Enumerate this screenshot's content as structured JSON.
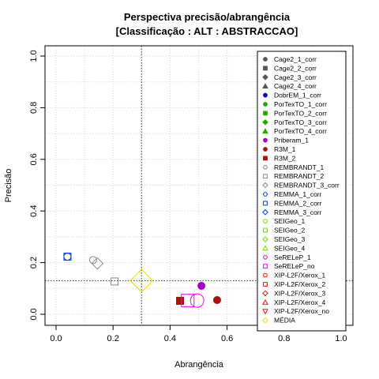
{
  "chart_data": {
    "type": "scatter",
    "title": "Perspectiva precisão/abrangência",
    "subtitle": "[Classificação : ALT : ABSTRACCAO]",
    "xlabel": "Abrangência",
    "ylabel": "Precisão",
    "xlim": [
      0,
      1
    ],
    "ylim": [
      0,
      1
    ],
    "xticks": [
      "0.0",
      "0.2",
      "0.4",
      "0.6",
      "0.8",
      "1.0"
    ],
    "yticks": [
      "0.0",
      "0.2",
      "0.4",
      "0.6",
      "0.8",
      "1.0"
    ],
    "grid": true,
    "legend_position": "right",
    "reference_lines": {
      "x": 0.3,
      "y": 0.13
    },
    "series": [
      {
        "name": "Cage2_1_corr",
        "shape": "circle",
        "filled": true,
        "color": "#555555"
      },
      {
        "name": "Cage2_2_corr",
        "shape": "square",
        "filled": true,
        "color": "#555555"
      },
      {
        "name": "Cage2_3_corr",
        "shape": "diamond",
        "filled": true,
        "color": "#555555"
      },
      {
        "name": "Cage2_4_corr",
        "shape": "triangle",
        "filled": true,
        "color": "#555555"
      },
      {
        "name": "DobrEM_1_corr",
        "shape": "circle",
        "filled": true,
        "color": "#0000cc"
      },
      {
        "name": "PorTexTO_1_corr",
        "shape": "circle",
        "filled": true,
        "color": "#22aa00"
      },
      {
        "name": "PorTexTO_2_corr",
        "shape": "square",
        "filled": true,
        "color": "#22aa00"
      },
      {
        "name": "PorTexTO_3_corr",
        "shape": "diamond",
        "filled": true,
        "color": "#22aa00"
      },
      {
        "name": "PorTexTO_4_corr",
        "shape": "triangle",
        "filled": true,
        "color": "#22aa00"
      },
      {
        "name": "Priberam_1",
        "shape": "circle",
        "filled": true,
        "color": "#aa00cc",
        "points": [
          {
            "x": 0.51,
            "y": 0.11,
            "size": 4.5
          }
        ]
      },
      {
        "name": "R3M_1",
        "shape": "circle",
        "filled": true,
        "color": "#aa1111",
        "points": [
          {
            "x": 0.565,
            "y": 0.055,
            "size": 4.5
          }
        ]
      },
      {
        "name": "R3M_2",
        "shape": "square",
        "filled": true,
        "color": "#aa1111",
        "points": [
          {
            "x": 0.435,
            "y": 0.052,
            "size": 4.5
          }
        ]
      },
      {
        "name": "REMBRANDT_1",
        "shape": "circle",
        "filled": false,
        "color": "#888888",
        "points": [
          {
            "x": 0.13,
            "y": 0.21,
            "size": 4.5
          }
        ]
      },
      {
        "name": "REMBRANDT_2",
        "shape": "square",
        "filled": false,
        "color": "#888888",
        "points": [
          {
            "x": 0.205,
            "y": 0.127,
            "size": 4.5
          }
        ]
      },
      {
        "name": "REMBRANDT_3_corr",
        "shape": "diamond",
        "filled": false,
        "color": "#888888",
        "points": [
          {
            "x": 0.145,
            "y": 0.197,
            "size": 5.5
          }
        ]
      },
      {
        "name": "REMMA_1_corr",
        "shape": "circle",
        "filled": false,
        "color": "#0033ee",
        "points": [
          {
            "x": 0.04,
            "y": 0.223,
            "size": 4.5
          }
        ]
      },
      {
        "name": "REMMA_2_corr",
        "shape": "square",
        "filled": false,
        "color": "#0033ee",
        "points": [
          {
            "x": 0.04,
            "y": 0.223,
            "size": 4.5
          }
        ]
      },
      {
        "name": "REMMA_3_corr",
        "shape": "diamond",
        "filled": false,
        "color": "#0033ee"
      },
      {
        "name": "SEIGeo_1",
        "shape": "circle",
        "filled": false,
        "color": "#77dd00"
      },
      {
        "name": "SEIGeo_2",
        "shape": "square",
        "filled": false,
        "color": "#77dd00"
      },
      {
        "name": "SEIGeo_3",
        "shape": "diamond",
        "filled": false,
        "color": "#77dd00"
      },
      {
        "name": "SEIGeo_4",
        "shape": "triangle",
        "filled": false,
        "color": "#77dd00"
      },
      {
        "name": "SeRELeP_1",
        "shape": "circle",
        "filled": false,
        "color": "#ee00ee",
        "points": [
          {
            "x": 0.495,
            "y": 0.053,
            "size": 8.5
          }
        ]
      },
      {
        "name": "SeRELeP_no",
        "shape": "square",
        "filled": false,
        "color": "#ee00ee",
        "points": [
          {
            "x": 0.462,
            "y": 0.053,
            "size": 8
          }
        ]
      },
      {
        "name": "XIP-L2F/Xerox_1",
        "shape": "circle",
        "filled": false,
        "color": "#ee1111"
      },
      {
        "name": "XIP-L2F/Xerox_2",
        "shape": "square",
        "filled": false,
        "color": "#ee1111"
      },
      {
        "name": "XIP-L2F/Xerox_3",
        "shape": "diamond",
        "filled": false,
        "color": "#ee1111"
      },
      {
        "name": "XIP-L2F/Xerox_4",
        "shape": "triangle",
        "filled": false,
        "color": "#ee1111"
      },
      {
        "name": "XIP-L2F/Xerox_no",
        "shape": "triangle-down",
        "filled": false,
        "color": "#ee1111"
      },
      {
        "name": "MÉDIA",
        "shape": "diamond",
        "filled": false,
        "color": "#eedd00",
        "points": [
          {
            "x": 0.3,
            "y": 0.13,
            "size": 11
          }
        ]
      }
    ]
  }
}
